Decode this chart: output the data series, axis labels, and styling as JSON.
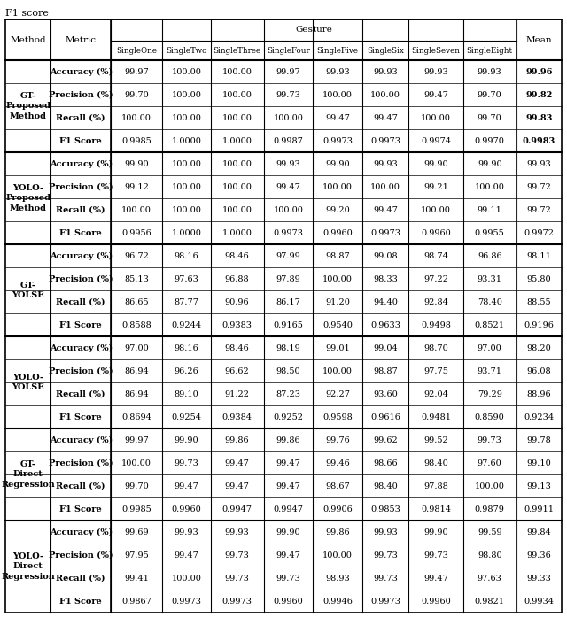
{
  "title": "F1 score",
  "gesture_header": "Gesture",
  "methods": [
    "GT-\nProposed\nMethod",
    "YOLO-\nProposed\nMethod",
    "GT-\nYOLSE",
    "YOLO-\nYOLSE",
    "GT-\nDirect\nRegression",
    "YOLO-\nDirect\nRegression"
  ],
  "bold_mean_method": 0,
  "metrics": [
    "Accuracy (%)",
    "Precision (%)",
    "Recall (%)",
    "F1 Score"
  ],
  "gesture_cols": [
    "SingleOne",
    "SingleTwo",
    "SingleThree",
    "SingleFour",
    "SingleFive",
    "SingleSix",
    "SingleSeven",
    "SingleEight"
  ],
  "rows": [
    [
      [
        "99.97",
        "100.00",
        "100.00",
        "99.97",
        "99.93",
        "99.93",
        "99.93",
        "99.93",
        "99.96"
      ],
      [
        "99.70",
        "100.00",
        "100.00",
        "99.73",
        "100.00",
        "100.00",
        "99.47",
        "99.70",
        "99.82"
      ],
      [
        "100.00",
        "100.00",
        "100.00",
        "100.00",
        "99.47",
        "99.47",
        "100.00",
        "99.70",
        "99.83"
      ],
      [
        "0.9985",
        "1.0000",
        "1.0000",
        "0.9987",
        "0.9973",
        "0.9973",
        "0.9974",
        "0.9970",
        "0.9983"
      ]
    ],
    [
      [
        "99.90",
        "100.00",
        "100.00",
        "99.93",
        "99.90",
        "99.93",
        "99.90",
        "99.90",
        "99.93"
      ],
      [
        "99.12",
        "100.00",
        "100.00",
        "99.47",
        "100.00",
        "100.00",
        "99.21",
        "100.00",
        "99.72"
      ],
      [
        "100.00",
        "100.00",
        "100.00",
        "100.00",
        "99.20",
        "99.47",
        "100.00",
        "99.11",
        "99.72"
      ],
      [
        "0.9956",
        "1.0000",
        "1.0000",
        "0.9973",
        "0.9960",
        "0.9973",
        "0.9960",
        "0.9955",
        "0.9972"
      ]
    ],
    [
      [
        "96.72",
        "98.16",
        "98.46",
        "97.99",
        "98.87",
        "99.08",
        "98.74",
        "96.86",
        "98.11"
      ],
      [
        "85.13",
        "97.63",
        "96.88",
        "97.89",
        "100.00",
        "98.33",
        "97.22",
        "93.31",
        "95.80"
      ],
      [
        "86.65",
        "87.77",
        "90.96",
        "86.17",
        "91.20",
        "94.40",
        "92.84",
        "78.40",
        "88.55"
      ],
      [
        "0.8588",
        "0.9244",
        "0.9383",
        "0.9165",
        "0.9540",
        "0.9633",
        "0.9498",
        "0.8521",
        "0.9196"
      ]
    ],
    [
      [
        "97.00",
        "98.16",
        "98.46",
        "98.19",
        "99.01",
        "99.04",
        "98.70",
        "97.00",
        "98.20"
      ],
      [
        "86.94",
        "96.26",
        "96.62",
        "98.50",
        "100.00",
        "98.87",
        "97.75",
        "93.71",
        "96.08"
      ],
      [
        "86.94",
        "89.10",
        "91.22",
        "87.23",
        "92.27",
        "93.60",
        "92.04",
        "79.29",
        "88.96"
      ],
      [
        "0.8694",
        "0.9254",
        "0.9384",
        "0.9252",
        "0.9598",
        "0.9616",
        "0.9481",
        "0.8590",
        "0.9234"
      ]
    ],
    [
      [
        "99.97",
        "99.90",
        "99.86",
        "99.86",
        "99.76",
        "99.62",
        "99.52",
        "99.73",
        "99.78"
      ],
      [
        "100.00",
        "99.73",
        "99.47",
        "99.47",
        "99.46",
        "98.66",
        "98.40",
        "97.60",
        "99.10"
      ],
      [
        "99.70",
        "99.47",
        "99.47",
        "99.47",
        "98.67",
        "98.40",
        "97.88",
        "100.00",
        "99.13"
      ],
      [
        "0.9985",
        "0.9960",
        "0.9947",
        "0.9947",
        "0.9906",
        "0.9853",
        "0.9814",
        "0.9879",
        "0.9911"
      ]
    ],
    [
      [
        "99.69",
        "99.93",
        "99.93",
        "99.90",
        "99.86",
        "99.93",
        "99.90",
        "99.59",
        "99.84"
      ],
      [
        "97.95",
        "99.47",
        "99.73",
        "99.47",
        "100.00",
        "99.73",
        "99.73",
        "98.80",
        "99.36"
      ],
      [
        "99.41",
        "100.00",
        "99.73",
        "99.73",
        "98.93",
        "99.73",
        "99.47",
        "97.63",
        "99.33"
      ],
      [
        "0.9867",
        "0.9973",
        "0.9973",
        "0.9960",
        "0.9946",
        "0.9973",
        "0.9960",
        "0.9821",
        "0.9934"
      ]
    ]
  ],
  "figsize": [
    6.4,
    6.97
  ],
  "dpi": 100,
  "title_fontsize": 8,
  "header_fontsize": 7.5,
  "data_fontsize": 7,
  "method_fontsize": 7
}
